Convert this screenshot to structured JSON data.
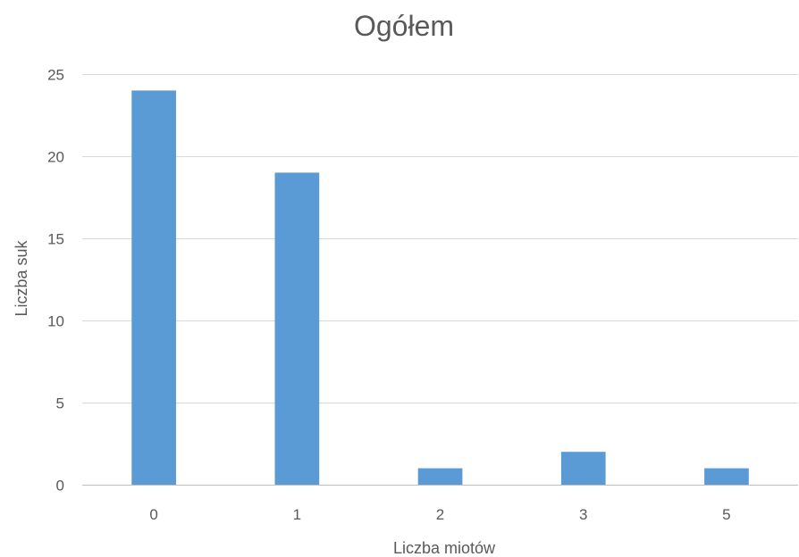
{
  "chart_data": {
    "type": "bar",
    "title": "Ogółem",
    "xlabel": "Liczba miotów",
    "ylabel": "Liczba suk",
    "categories": [
      "0",
      "1",
      "2",
      "3",
      "5"
    ],
    "values": [
      24,
      19,
      1,
      2,
      1
    ],
    "ylim": [
      0,
      25
    ],
    "yticks": [
      "0",
      "5",
      "10",
      "15",
      "20",
      "25"
    ],
    "grid": true,
    "legend": "none",
    "bar_color": "#5b9bd5",
    "grid_color": "#d9d9d9",
    "text_color": "#595959"
  }
}
